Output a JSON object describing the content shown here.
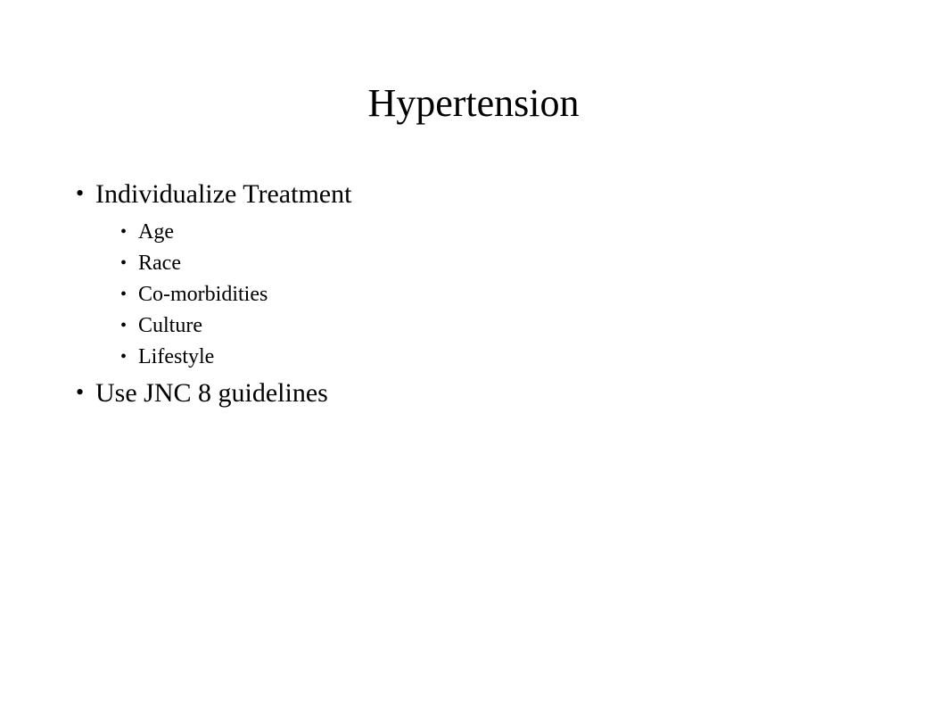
{
  "slide": {
    "title": "Hypertension",
    "title_fontsize": 44,
    "background_color": "#ffffff",
    "text_color": "#000000",
    "font_family": "Times New Roman",
    "bullets": [
      {
        "text": "Individualize Treatment",
        "fontsize": 30,
        "sub": [
          {
            "text": "Age",
            "fontsize": 24
          },
          {
            "text": "Race",
            "fontsize": 24
          },
          {
            "text": "Co-morbidities",
            "fontsize": 24
          },
          {
            "text": "Culture",
            "fontsize": 24
          },
          {
            "text": "Lifestyle",
            "fontsize": 24
          }
        ]
      },
      {
        "text": "Use JNC 8 guidelines",
        "fontsize": 30,
        "sub": []
      }
    ]
  }
}
